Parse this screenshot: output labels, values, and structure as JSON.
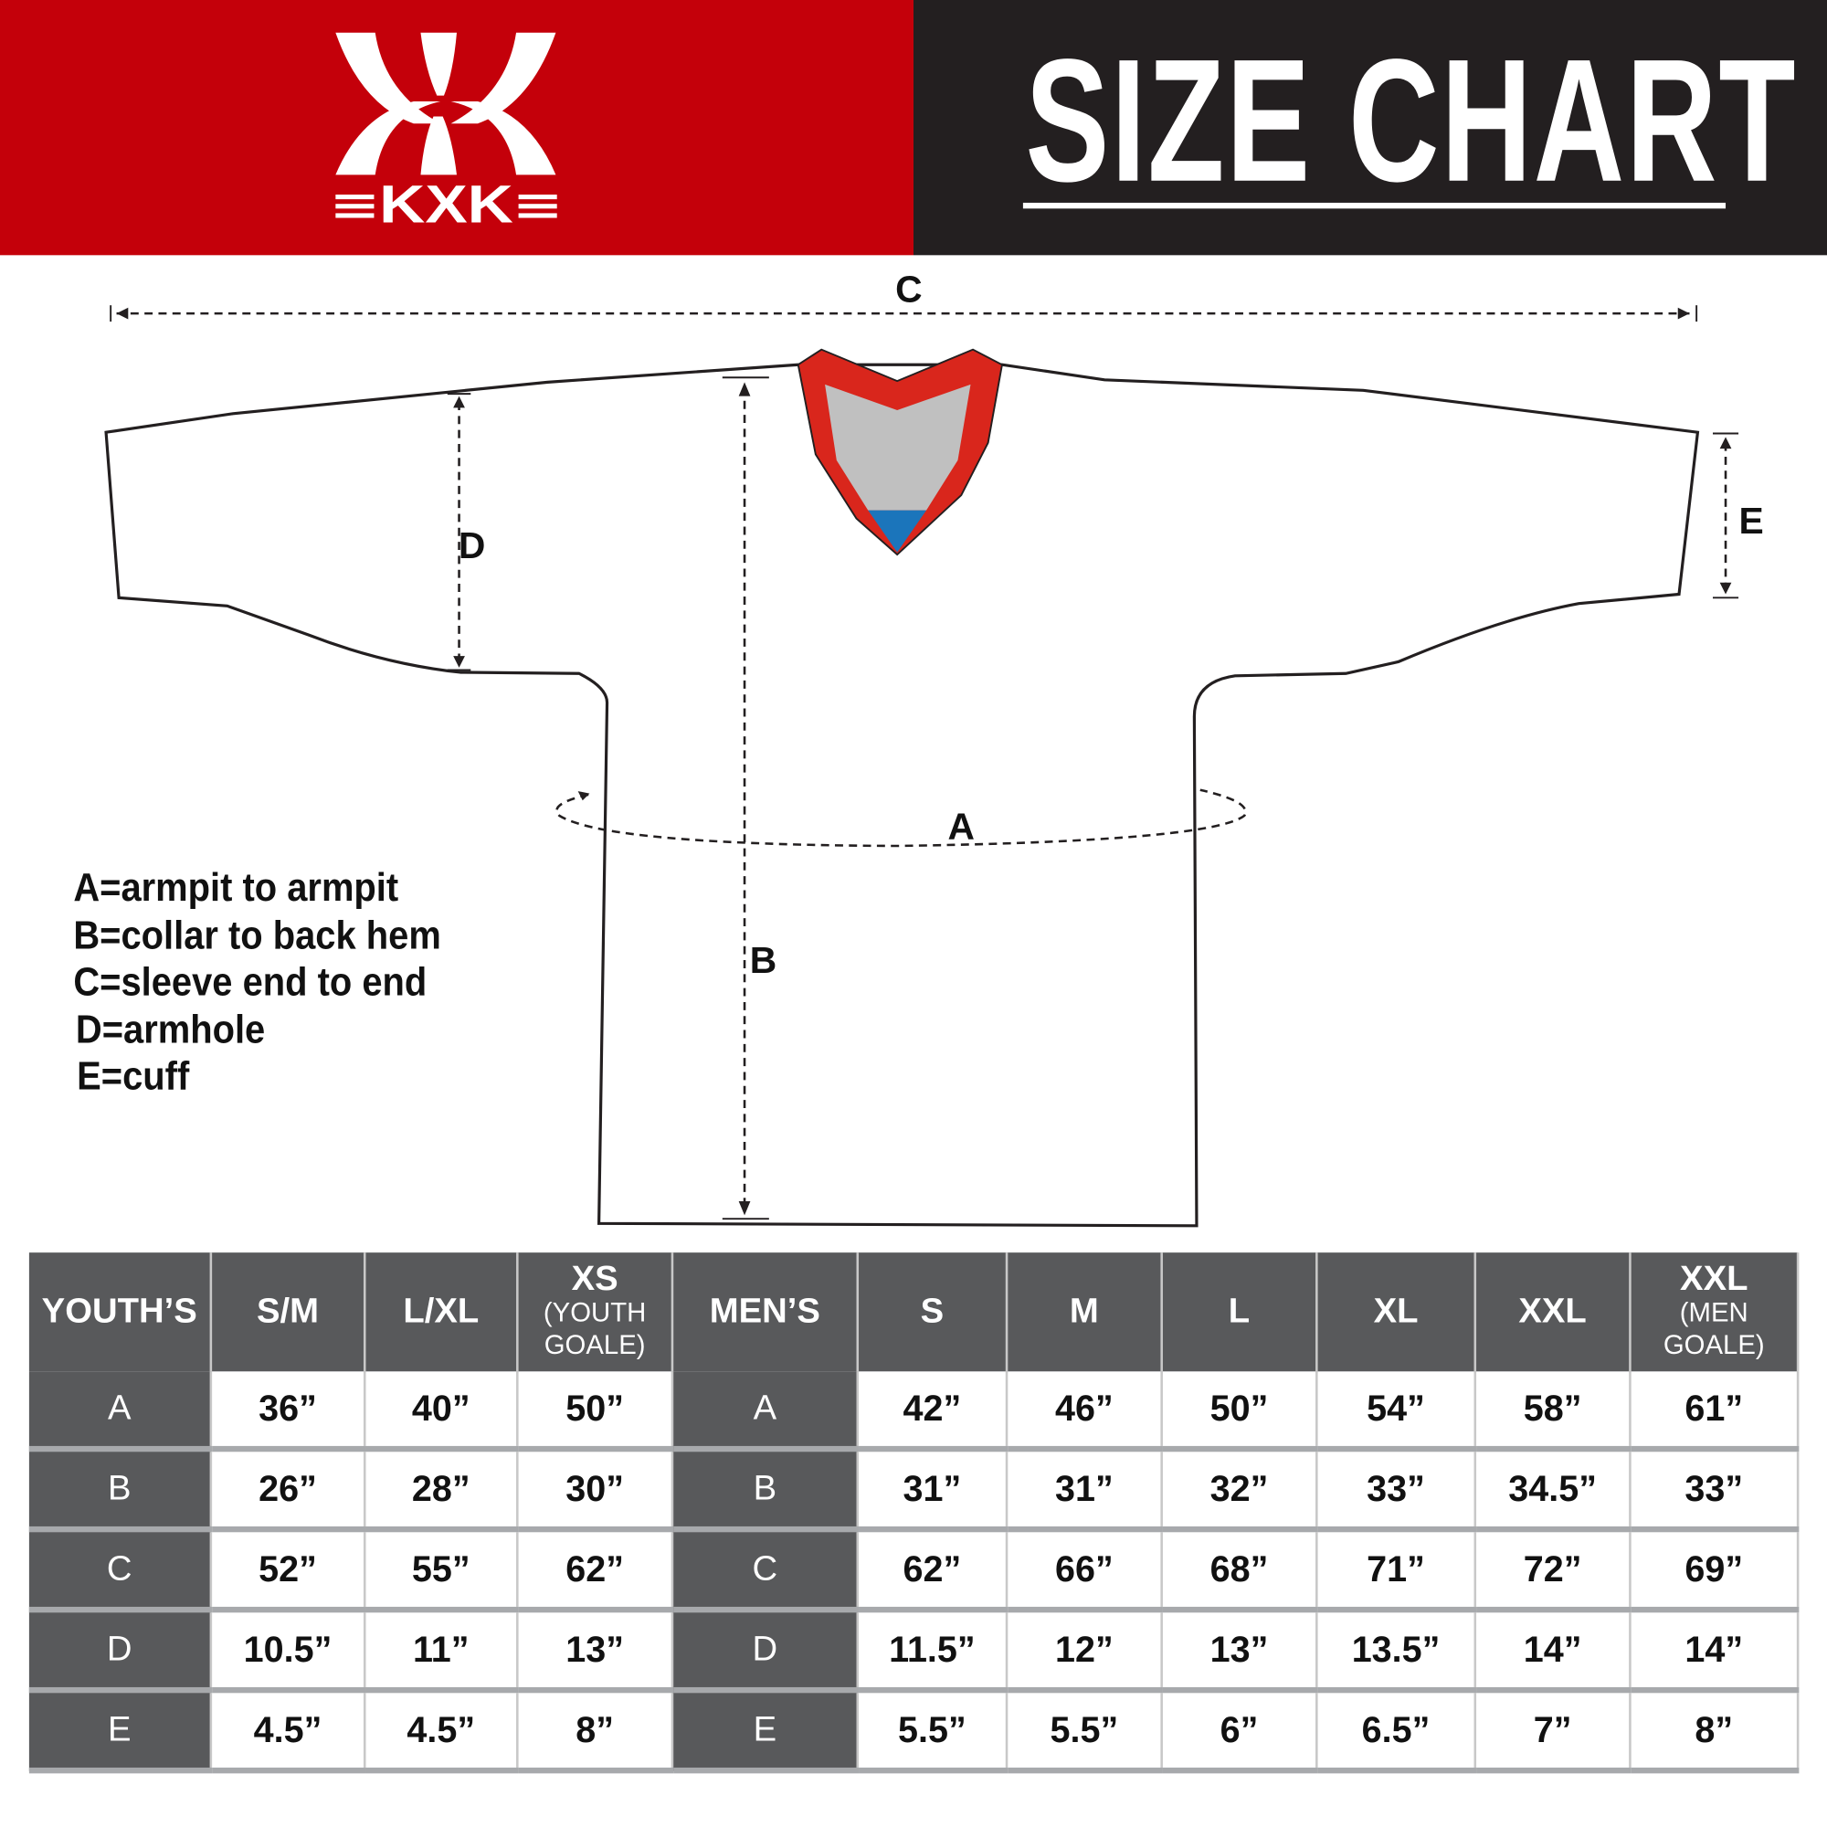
{
  "brand": {
    "logo_text": "KXK",
    "red": "#c4000a",
    "dark": "#231f20"
  },
  "header": {
    "title": "SIZE CHART"
  },
  "diagram": {
    "labels": {
      "a": "A",
      "b": "B",
      "c": "C",
      "d": "D",
      "e": "E"
    },
    "collar_colors": {
      "trim": "#d9261c",
      "inner": "#c0c0c0",
      "tip": "#1b75bb"
    }
  },
  "legend": [
    "A=armpit to armpit",
    "B=collar to back hem",
    "C=sleeve end to end",
    "D=armhole",
    "E=cuff"
  ],
  "table": {
    "youth_header": "YOUTH’S",
    "youth_sizes": [
      {
        "size": "S/M",
        "note": ""
      },
      {
        "size": "L/XL",
        "note": ""
      },
      {
        "size": "XS",
        "note": "(YOUTH GOALE)"
      }
    ],
    "men_header": "MEN’S",
    "men_sizes": [
      {
        "size": "S",
        "note": ""
      },
      {
        "size": "M",
        "note": ""
      },
      {
        "size": "L",
        "note": ""
      },
      {
        "size": "XL",
        "note": ""
      },
      {
        "size": "XXL",
        "note": ""
      },
      {
        "size": "XXL",
        "note": "(MEN GOALE)"
      }
    ],
    "rows": [
      {
        "label": "A",
        "youth": [
          "36”",
          "40”",
          "50”"
        ],
        "men": [
          "42”",
          "46”",
          "50”",
          "54”",
          "58”",
          "61”"
        ]
      },
      {
        "label": "B",
        "youth": [
          "26”",
          "28”",
          "30”"
        ],
        "men": [
          "31”",
          "31”",
          "32”",
          "33”",
          "34.5”",
          "33”"
        ]
      },
      {
        "label": "C",
        "youth": [
          "52”",
          "55”",
          "62”"
        ],
        "men": [
          "62”",
          "66”",
          "68”",
          "71”",
          "72”",
          "69”"
        ]
      },
      {
        "label": "D",
        "youth": [
          "10.5”",
          "11”",
          "13”"
        ],
        "men": [
          "11.5”",
          "12”",
          "13”",
          "13.5”",
          "14”",
          "14”"
        ]
      },
      {
        "label": "E",
        "youth": [
          "4.5”",
          "4.5”",
          "8”"
        ],
        "men": [
          "5.5”",
          "5.5”",
          "6”",
          "6.5”",
          "7”",
          "8”"
        ]
      }
    ]
  }
}
